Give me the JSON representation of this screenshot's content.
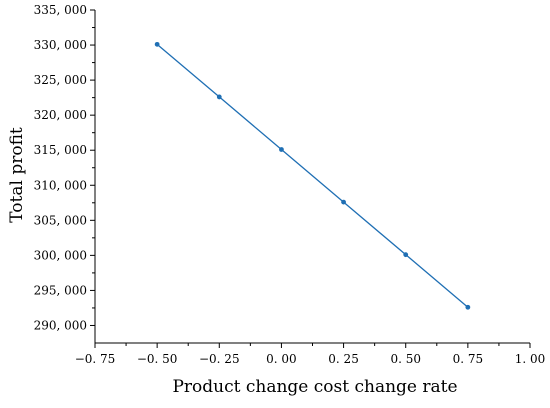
{
  "chart_data": {
    "type": "line",
    "title": "",
    "xlabel": "Product change cost change rate",
    "ylabel": "Total profit",
    "xlim": [
      -0.75,
      1.0
    ],
    "ylim": [
      287500,
      335000
    ],
    "x_ticks": [
      -0.75,
      -0.5,
      -0.25,
      0.0,
      0.25,
      0.5,
      0.75,
      1.0
    ],
    "x_tick_labels": [
      "−0. 75",
      "−0. 50",
      "−0. 25",
      "0. 00",
      "0. 25",
      "0. 50",
      "0. 75",
      "1. 00"
    ],
    "y_ticks": [
      290000,
      295000,
      300000,
      305000,
      310000,
      315000,
      320000,
      325000,
      330000,
      335000
    ],
    "y_tick_labels": [
      "290, 000",
      "295, 000",
      "300, 000",
      "305, 000",
      "310, 000",
      "315, 000",
      "320, 000",
      "325, 000",
      "330, 000",
      "335, 000"
    ],
    "series": [
      {
        "x": [
          -0.5,
          -0.25,
          0.0,
          0.25,
          0.5,
          0.75
        ],
        "y": [
          330100,
          322600,
          315100,
          307600,
          300100,
          292600
        ],
        "color": "#1f6fb4"
      }
    ],
    "grid": false,
    "legend": "none"
  }
}
